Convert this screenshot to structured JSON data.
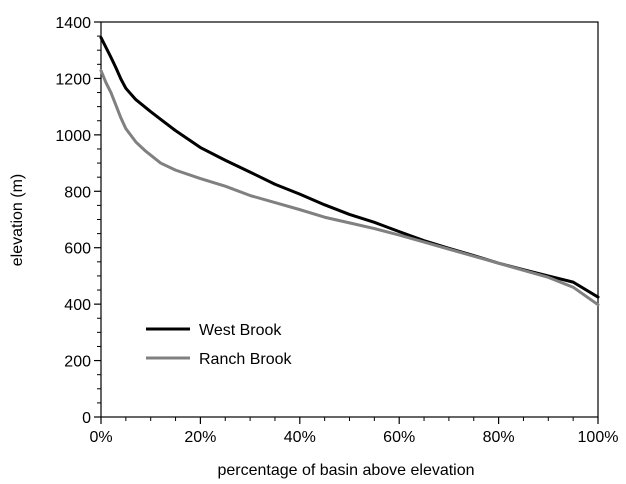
{
  "chart_data": {
    "type": "line",
    "title": "",
    "xlabel": "percentage of basin above elevation",
    "ylabel": "elevation (m)",
    "xlim": [
      0,
      100
    ],
    "ylim": [
      0,
      1400
    ],
    "x_ticks": [
      "0%",
      "20%",
      "40%",
      "60%",
      "80%",
      "100%"
    ],
    "y_ticks": [
      "0",
      "200",
      "400",
      "600",
      "800",
      "1000",
      "1200",
      "1400"
    ],
    "grid": false,
    "legend": {
      "placement": "lower-left",
      "entries": [
        "West Brook",
        "Ranch Brook"
      ]
    },
    "series": [
      {
        "name": "West Brook",
        "color": "#000000",
        "points": [
          [
            0,
            1345
          ],
          [
            1,
            1310
          ],
          [
            2,
            1275
          ],
          [
            3,
            1238
          ],
          [
            4,
            1198
          ],
          [
            5,
            1165
          ],
          [
            7,
            1125
          ],
          [
            10,
            1082
          ],
          [
            12,
            1055
          ],
          [
            15,
            1015
          ],
          [
            20,
            955
          ],
          [
            25,
            910
          ],
          [
            30,
            868
          ],
          [
            35,
            825
          ],
          [
            40,
            790
          ],
          [
            45,
            752
          ],
          [
            50,
            718
          ],
          [
            55,
            690
          ],
          [
            60,
            657
          ],
          [
            65,
            625
          ],
          [
            70,
            598
          ],
          [
            75,
            572
          ],
          [
            80,
            545
          ],
          [
            85,
            522
          ],
          [
            90,
            500
          ],
          [
            95,
            478
          ],
          [
            100,
            425
          ]
        ]
      },
      {
        "name": "Ranch Brook",
        "color": "#808080",
        "points": [
          [
            0,
            1228
          ],
          [
            1,
            1185
          ],
          [
            2,
            1150
          ],
          [
            3,
            1105
          ],
          [
            4,
            1060
          ],
          [
            5,
            1022
          ],
          [
            7,
            975
          ],
          [
            9,
            942
          ],
          [
            12,
            900
          ],
          [
            15,
            875
          ],
          [
            20,
            845
          ],
          [
            25,
            818
          ],
          [
            30,
            785
          ],
          [
            35,
            760
          ],
          [
            40,
            735
          ],
          [
            45,
            708
          ],
          [
            50,
            688
          ],
          [
            55,
            668
          ],
          [
            60,
            645
          ],
          [
            65,
            620
          ],
          [
            70,
            595
          ],
          [
            75,
            570
          ],
          [
            80,
            545
          ],
          [
            85,
            520
          ],
          [
            90,
            495
          ],
          [
            95,
            460
          ],
          [
            100,
            398
          ]
        ]
      }
    ]
  }
}
